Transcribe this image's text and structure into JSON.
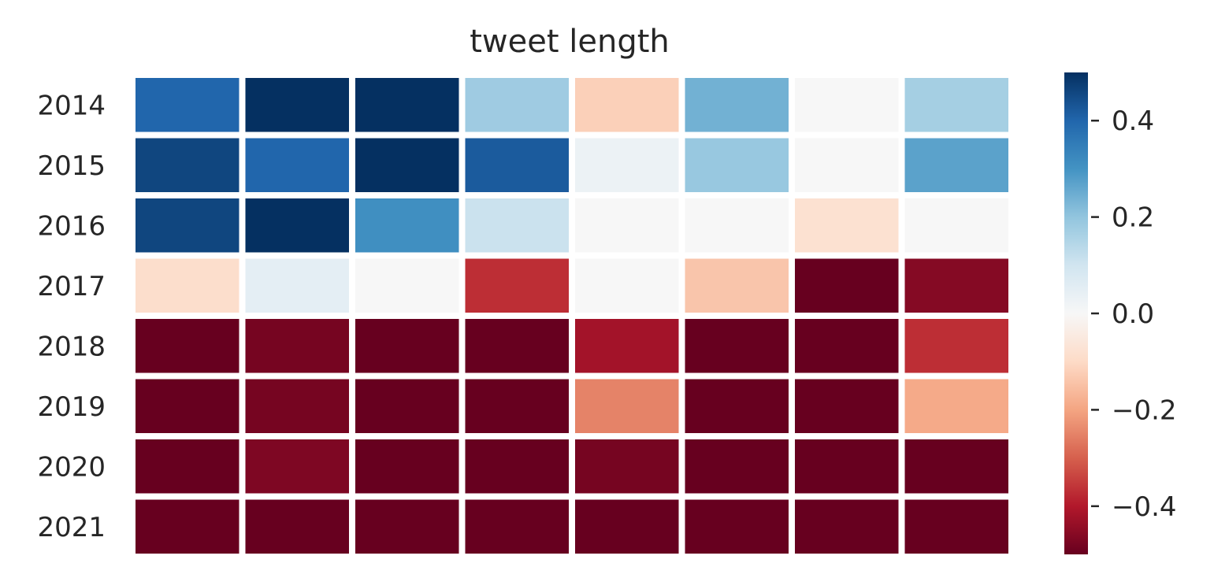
{
  "chart_data": {
    "type": "heatmap",
    "title": "tweet length",
    "rows": [
      "2014",
      "2015",
      "2016",
      "2017",
      "2018",
      "2019",
      "2020",
      "2021"
    ],
    "columns": [
      "",
      "",
      "",
      "",
      "",
      "",
      "",
      ""
    ],
    "values": [
      [
        0.4,
        0.5,
        0.5,
        0.18,
        -0.12,
        0.24,
        0.0,
        0.17
      ],
      [
        0.46,
        0.4,
        0.5,
        0.42,
        0.03,
        0.19,
        0.0,
        0.27
      ],
      [
        0.46,
        0.5,
        0.31,
        0.11,
        0.0,
        0.0,
        -0.08,
        0.0
      ],
      [
        -0.09,
        0.05,
        0.0,
        -0.37,
        0.0,
        -0.14,
        -0.5,
        -0.46
      ],
      [
        -0.5,
        -0.48,
        -0.5,
        -0.5,
        -0.42,
        -0.5,
        -0.5,
        -0.37
      ],
      [
        -0.5,
        -0.48,
        -0.5,
        -0.5,
        -0.25,
        -0.5,
        -0.5,
        -0.19
      ],
      [
        -0.5,
        -0.47,
        -0.5,
        -0.5,
        -0.48,
        -0.5,
        -0.5,
        -0.5
      ],
      [
        -0.5,
        -0.5,
        -0.5,
        -0.5,
        -0.5,
        -0.5,
        -0.5,
        -0.5
      ]
    ],
    "colormap": "RdBu",
    "vmin": -0.5,
    "vmax": 0.5,
    "colorbar_ticks": [
      0.4,
      0.2,
      0.0,
      -0.2,
      -0.4
    ],
    "colorbar_tick_labels": [
      "0.4",
      "0.2",
      "0.0",
      "−0.2",
      "−0.4"
    ],
    "grid": false,
    "legend": "colorbar-right"
  }
}
